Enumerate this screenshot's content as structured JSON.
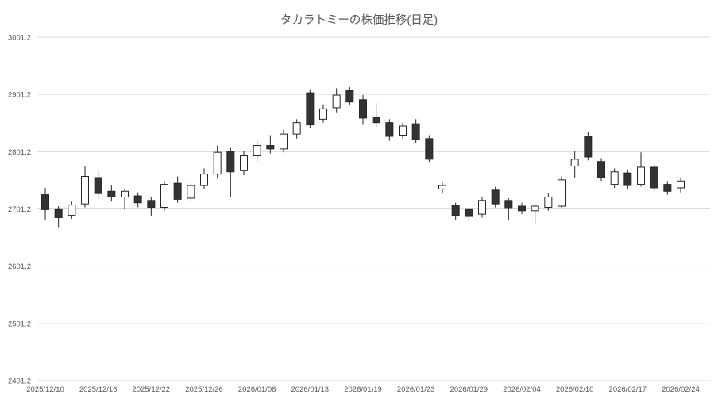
{
  "chart_data": {
    "type": "candlestick",
    "title": "タカラトミーの株価推移(日足)",
    "ylim": [
      2401.2,
      3001.2
    ],
    "y_ticks": [
      3001.2,
      2901.2,
      2801.2,
      2701.2,
      2601.2,
      2501.2,
      2401.2
    ],
    "x_tick_labels": [
      "2025/12/10",
      "2025/12/16",
      "2025/12/22",
      "2025/12/26",
      "2026/01/06",
      "2026/01/13",
      "2026/01/19",
      "2026/01/23",
      "2026/01/29",
      "2026/02/04",
      "2026/02/10",
      "2026/02/17",
      "2026/02/24"
    ],
    "x_tick_step": 4,
    "grid": true,
    "legend": false,
    "candle_format": [
      "open",
      "high",
      "low",
      "close"
    ],
    "candles": [
      [
        2726,
        2738,
        2682,
        2700
      ],
      [
        2700,
        2706,
        2668,
        2686
      ],
      [
        2690,
        2714,
        2684,
        2708
      ],
      [
        2710,
        2776,
        2704,
        2758
      ],
      [
        2756,
        2768,
        2718,
        2728
      ],
      [
        2732,
        2742,
        2714,
        2722
      ],
      [
        2722,
        2736,
        2700,
        2732
      ],
      [
        2724,
        2730,
        2704,
        2712
      ],
      [
        2716,
        2722,
        2688,
        2704
      ],
      [
        2704,
        2750,
        2698,
        2744
      ],
      [
        2746,
        2758,
        2712,
        2718
      ],
      [
        2720,
        2746,
        2714,
        2742
      ],
      [
        2742,
        2772,
        2736,
        2762
      ],
      [
        2762,
        2812,
        2754,
        2800
      ],
      [
        2802,
        2808,
        2722,
        2766
      ],
      [
        2768,
        2802,
        2760,
        2794
      ],
      [
        2794,
        2822,
        2782,
        2812
      ],
      [
        2812,
        2830,
        2798,
        2806
      ],
      [
        2806,
        2840,
        2800,
        2832
      ],
      [
        2832,
        2858,
        2824,
        2852
      ],
      [
        2904,
        2910,
        2842,
        2848
      ],
      [
        2858,
        2884,
        2852,
        2876
      ],
      [
        2878,
        2912,
        2870,
        2900
      ],
      [
        2908,
        2914,
        2882,
        2888
      ],
      [
        2892,
        2900,
        2848,
        2860
      ],
      [
        2862,
        2886,
        2844,
        2852
      ],
      [
        2852,
        2858,
        2820,
        2828
      ],
      [
        2830,
        2852,
        2824,
        2846
      ],
      [
        2850,
        2858,
        2816,
        2822
      ],
      [
        2824,
        2830,
        2782,
        2788
      ],
      [
        2736,
        2748,
        2728,
        2742
      ],
      [
        2708,
        2712,
        2682,
        2690
      ],
      [
        2700,
        2704,
        2680,
        2688
      ],
      [
        2692,
        2722,
        2686,
        2716
      ],
      [
        2734,
        2740,
        2704,
        2710
      ],
      [
        2716,
        2720,
        2682,
        2702
      ],
      [
        2706,
        2712,
        2692,
        2698
      ],
      [
        2698,
        2710,
        2674,
        2706
      ],
      [
        2704,
        2728,
        2698,
        2722
      ],
      [
        2706,
        2758,
        2702,
        2752
      ],
      [
        2776,
        2802,
        2756,
        2788
      ],
      [
        2828,
        2836,
        2786,
        2792
      ],
      [
        2784,
        2790,
        2750,
        2756
      ],
      [
        2744,
        2772,
        2738,
        2766
      ],
      [
        2764,
        2770,
        2736,
        2742
      ],
      [
        2744,
        2800,
        2740,
        2774
      ],
      [
        2774,
        2780,
        2732,
        2738
      ],
      [
        2744,
        2750,
        2726,
        2732
      ],
      [
        2738,
        2756,
        2730,
        2750
      ]
    ],
    "colors": {
      "up_fill": "#ffffff",
      "down_fill": "#333333",
      "outline": "#262626",
      "grid": "#d9d9d9",
      "text": "#595959",
      "background": "#ffffff"
    }
  }
}
